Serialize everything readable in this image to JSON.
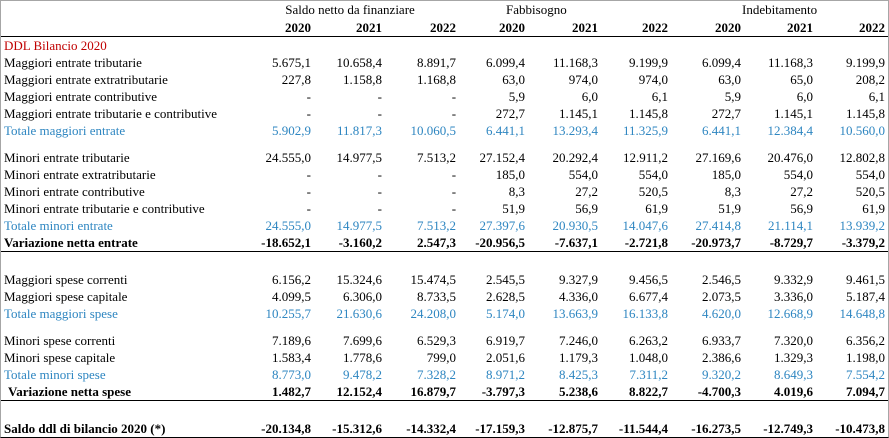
{
  "colors": {
    "section_title": "#c00000",
    "total_rows": "#2e86c1"
  },
  "table": {
    "groups": [
      "Saldo netto da finanziare",
      "Fabbisogno",
      "Indebitamento"
    ],
    "years": [
      "2020",
      "2021",
      "2022",
      "2020",
      "2021",
      "2022",
      "2020",
      "2021",
      "2022"
    ],
    "section_title": "DDL Bilancio 2020",
    "rows": [
      {
        "label": "Maggiori entrate tributarie",
        "values": [
          "5.675,1",
          "10.658,4",
          "8.891,7",
          "6.099,4",
          "11.168,3",
          "9.199,9",
          "6.099,4",
          "11.168,3",
          "9.199,9"
        ]
      },
      {
        "label": "Maggiori entrate extratributarie",
        "values": [
          "227,8",
          "1.158,8",
          "1.168,8",
          "63,0",
          "974,0",
          "974,0",
          "63,0",
          "65,0",
          "208,2"
        ]
      },
      {
        "label": "Maggiori entrate contributive",
        "values": [
          "-",
          "-",
          "-",
          "5,9",
          "6,0",
          "6,1",
          "5,9",
          "6,0",
          "6,1"
        ]
      },
      {
        "label": "Maggiori entrate tributarie e contributive",
        "values": [
          "-",
          "-",
          "-",
          "272,7",
          "1.145,1",
          "1.145,8",
          "272,7",
          "1.145,1",
          "1.145,8"
        ]
      },
      {
        "label": "Totale maggiori entrate",
        "values": [
          "5.902,9",
          "11.817,3",
          "10.060,5",
          "6.441,1",
          "13.293,4",
          "11.325,9",
          "6.441,1",
          "12.384,4",
          "10.560,0"
        ]
      },
      {
        "label": "Minori entrate tributarie",
        "values": [
          "24.555,0",
          "14.977,5",
          "7.513,2",
          "27.152,4",
          "20.292,4",
          "12.911,2",
          "27.169,6",
          "20.476,0",
          "12.802,8"
        ]
      },
      {
        "label": "Minori entrate extratributarie",
        "values": [
          "-",
          "-",
          "-",
          "185,0",
          "554,0",
          "554,0",
          "185,0",
          "554,0",
          "554,0"
        ]
      },
      {
        "label": "Minori entrate contributive",
        "values": [
          "-",
          "-",
          "-",
          "8,3",
          "27,2",
          "520,5",
          "8,3",
          "27,2",
          "520,5"
        ]
      },
      {
        "label": "Minori entrate tributarie e contributive",
        "values": [
          "-",
          "-",
          "-",
          "51,9",
          "56,9",
          "61,9",
          "51,9",
          "56,9",
          "61,9"
        ]
      },
      {
        "label": "Totale minori entrate",
        "values": [
          "24.555,0",
          "14.977,5",
          "7.513,2",
          "27.397,6",
          "20.930,5",
          "14.047,6",
          "27.414,8",
          "21.114,1",
          "13.939,2"
        ]
      },
      {
        "label": "Variazione netta entrate",
        "values": [
          "-18.652,1",
          "-3.160,2",
          "2.547,3",
          "-20.956,5",
          "-7.637,1",
          "-2.721,8",
          "-20.973,7",
          "-8.729,7",
          "-3.379,2"
        ]
      },
      {
        "label": "Maggiori spese correnti",
        "values": [
          "6.156,2",
          "15.324,6",
          "15.474,5",
          "2.545,5",
          "9.327,9",
          "9.456,5",
          "2.546,5",
          "9.332,9",
          "9.461,5"
        ]
      },
      {
        "label": "Maggiori spese capitale",
        "values": [
          "4.099,5",
          "6.306,0",
          "8.733,5",
          "2.628,5",
          "4.336,0",
          "6.677,4",
          "2.073,5",
          "3.336,0",
          "5.187,4"
        ]
      },
      {
        "label": "Totale maggiori spese",
        "values": [
          "10.255,7",
          "21.630,6",
          "24.208,0",
          "5.174,0",
          "13.663,9",
          "16.133,8",
          "4.620,0",
          "12.668,9",
          "14.648,8"
        ]
      },
      {
        "label": "Minori spese correnti",
        "values": [
          "7.189,6",
          "7.699,6",
          "6.529,3",
          "6.919,7",
          "7.246,0",
          "6.263,2",
          "6.933,7",
          "7.320,0",
          "6.356,2"
        ]
      },
      {
        "label": "Minori spese capitale",
        "values": [
          "1.583,4",
          "1.778,6",
          "799,0",
          "2.051,6",
          "1.179,3",
          "1.048,0",
          "2.386,6",
          "1.329,3",
          "1.198,0"
        ]
      },
      {
        "label": "Totale minori spese",
        "values": [
          "8.773,0",
          "9.478,2",
          "7.328,2",
          "8.971,2",
          "8.425,3",
          "7.311,2",
          "9.320,2",
          "8.649,3",
          "7.554,2"
        ]
      },
      {
        "label": "Variazione netta spese",
        "values": [
          "1.482,7",
          "12.152,4",
          "16.879,7",
          "-3.797,3",
          "5.238,6",
          "8.822,7",
          "-4.700,3",
          "4.019,6",
          "7.094,7"
        ]
      },
      {
        "label": "Saldo ddl di bilancio 2020 (*)",
        "values": [
          "-20.134,8",
          "-15.312,6",
          "-14.332,4",
          "-17.159,3",
          "-12.875,7",
          "-11.544,4",
          "-16.273,5",
          "-12.749,3",
          "-10.473,8"
        ]
      }
    ]
  }
}
